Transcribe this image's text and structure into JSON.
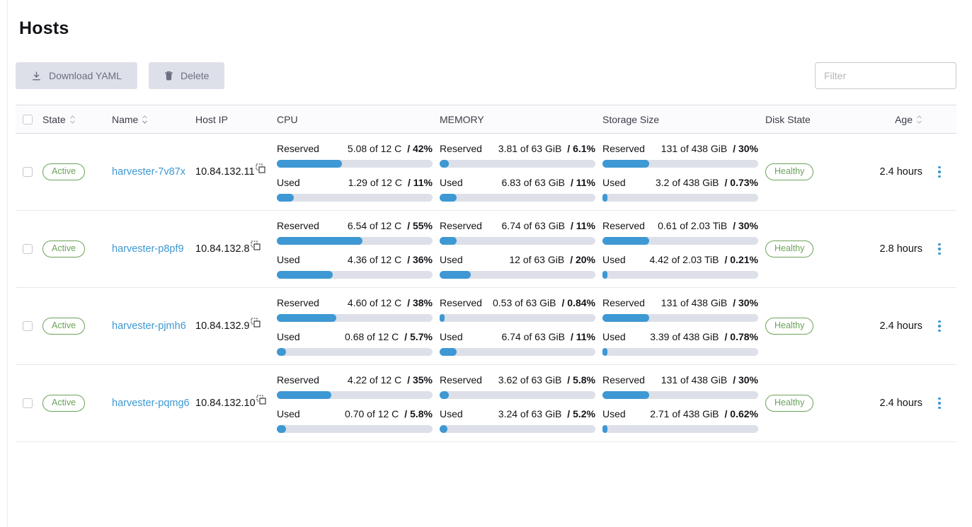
{
  "colors": {
    "accent_blue": "#3d98d3",
    "bar_track": "#dde0e8",
    "success_green": "#6ba258",
    "button_bg": "#dee0e9"
  },
  "header": {
    "title": "Hosts"
  },
  "toolbar": {
    "download_yaml_label": "Download YAML",
    "delete_label": "Delete",
    "filter_placeholder": "Filter"
  },
  "table": {
    "columns": {
      "state": "State",
      "name": "Name",
      "host_ip": "Host IP",
      "cpu": "CPU",
      "memory": "MEMORY",
      "storage": "Storage Size",
      "disk_state": "Disk State",
      "age": "Age"
    },
    "metric_labels": {
      "reserved": "Reserved",
      "used": "Used"
    },
    "rows": [
      {
        "state": "Active",
        "name": "harvester-7v87x",
        "ip": "10.84.132.11",
        "cpu": {
          "reserved": {
            "text": "5.08 of 12 C",
            "pct_label": "/ 42%",
            "pct": 42
          },
          "used": {
            "text": "1.29 of 12 C",
            "pct_label": "/ 11%",
            "pct": 11
          }
        },
        "memory": {
          "reserved": {
            "text": "3.81 of 63 GiB",
            "pct_label": "/ 6.1%",
            "pct": 6.1
          },
          "used": {
            "text": "6.83 of 63 GiB",
            "pct_label": "/ 11%",
            "pct": 11
          }
        },
        "storage": {
          "reserved": {
            "text": "131 of 438 GiB",
            "pct_label": "/ 30%",
            "pct": 30
          },
          "used": {
            "text": "3.2 of 438 GiB",
            "pct_label": "/ 0.73%",
            "pct": 0.73
          }
        },
        "disk_state": "Healthy",
        "age": "2.4 hours"
      },
      {
        "state": "Active",
        "name": "harvester-p8pf9",
        "ip": "10.84.132.8",
        "cpu": {
          "reserved": {
            "text": "6.54 of 12 C",
            "pct_label": "/ 55%",
            "pct": 55
          },
          "used": {
            "text": "4.36 of 12 C",
            "pct_label": "/ 36%",
            "pct": 36
          }
        },
        "memory": {
          "reserved": {
            "text": "6.74 of 63 GiB",
            "pct_label": "/ 11%",
            "pct": 11
          },
          "used": {
            "text": "12 of 63 GiB",
            "pct_label": "/ 20%",
            "pct": 20
          }
        },
        "storage": {
          "reserved": {
            "text": "0.61 of 2.03 TiB",
            "pct_label": "/ 30%",
            "pct": 30
          },
          "used": {
            "text": "4.42 of 2.03 TiB",
            "pct_label": "/ 0.21%",
            "pct": 0.21
          }
        },
        "disk_state": "Healthy",
        "age": "2.8 hours"
      },
      {
        "state": "Active",
        "name": "harvester-pjmh6",
        "ip": "10.84.132.9",
        "cpu": {
          "reserved": {
            "text": "4.60 of 12 C",
            "pct_label": "/ 38%",
            "pct": 38
          },
          "used": {
            "text": "0.68 of 12 C",
            "pct_label": "/ 5.7%",
            "pct": 5.7
          }
        },
        "memory": {
          "reserved": {
            "text": "0.53 of 63 GiB",
            "pct_label": "/ 0.84%",
            "pct": 0.84
          },
          "used": {
            "text": "6.74 of 63 GiB",
            "pct_label": "/ 11%",
            "pct": 11
          }
        },
        "storage": {
          "reserved": {
            "text": "131 of 438 GiB",
            "pct_label": "/ 30%",
            "pct": 30
          },
          "used": {
            "text": "3.39 of 438 GiB",
            "pct_label": "/ 0.78%",
            "pct": 0.78
          }
        },
        "disk_state": "Healthy",
        "age": "2.4 hours"
      },
      {
        "state": "Active",
        "name": "harvester-pqmg6",
        "ip": "10.84.132.10",
        "cpu": {
          "reserved": {
            "text": "4.22 of 12 C",
            "pct_label": "/ 35%",
            "pct": 35
          },
          "used": {
            "text": "0.70 of 12 C",
            "pct_label": "/ 5.8%",
            "pct": 5.8
          }
        },
        "memory": {
          "reserved": {
            "text": "3.62 of 63 GiB",
            "pct_label": "/ 5.8%",
            "pct": 5.8
          },
          "used": {
            "text": "3.24 of 63 GiB",
            "pct_label": "/ 5.2%",
            "pct": 5.2
          }
        },
        "storage": {
          "reserved": {
            "text": "131 of 438 GiB",
            "pct_label": "/ 30%",
            "pct": 30
          },
          "used": {
            "text": "2.71 of 438 GiB",
            "pct_label": "/ 0.62%",
            "pct": 0.62
          }
        },
        "disk_state": "Healthy",
        "age": "2.4 hours"
      }
    ]
  }
}
